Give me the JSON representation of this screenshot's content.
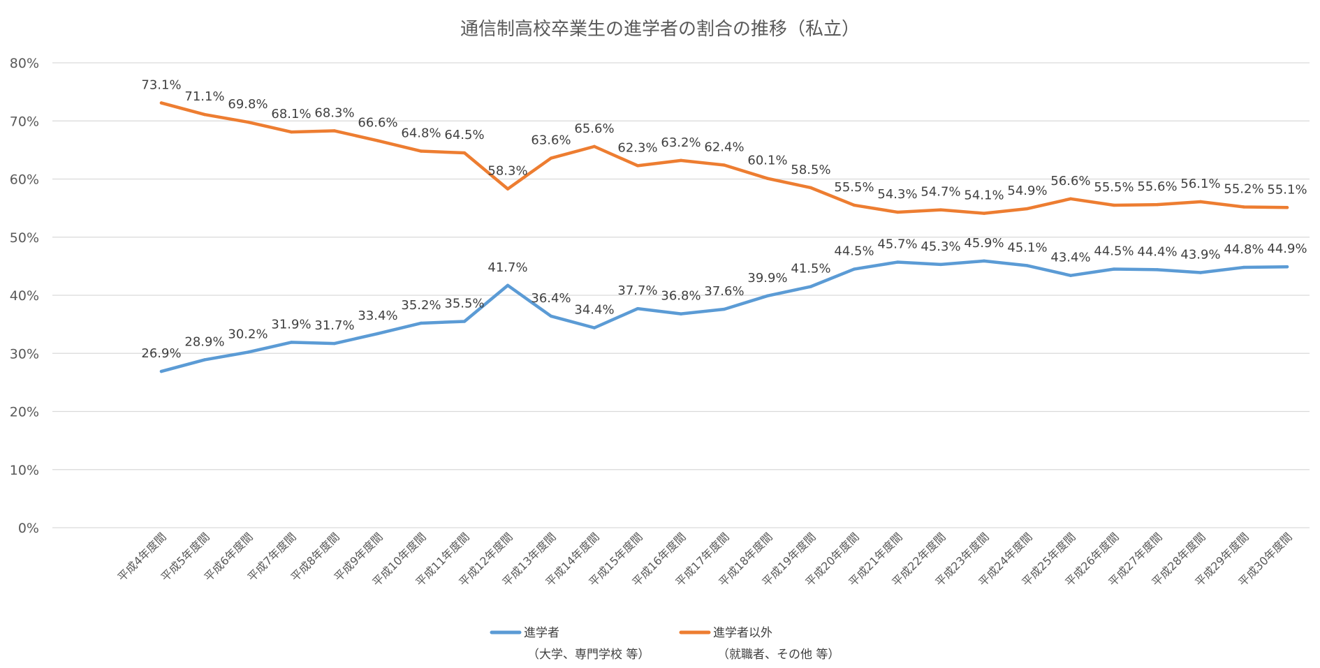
{
  "chart_data": {
    "type": "line",
    "title": "通信制高校卒業生の進学者の割合の推移（私立）",
    "xlabel": "",
    "ylabel": "",
    "ylim": [
      0,
      0.8
    ],
    "yticks": [
      "0%",
      "10%",
      "20%",
      "30%",
      "40%",
      "50%",
      "60%",
      "70%",
      "80%"
    ],
    "grid": true,
    "legend_position": "bottom",
    "categories": [
      "平成4年度間",
      "平成5年度間",
      "平成6年度間",
      "平成7年度間",
      "平成8年度間",
      "平成9年度間",
      "平成10年度間",
      "平成11年度間",
      "平成12年度間",
      "平成13年度間",
      "平成14年度間",
      "平成15年度間",
      "平成16年度間",
      "平成17年度間",
      "平成18年度間",
      "平成19年度間",
      "平成20年度間",
      "平成21年度間",
      "平成22年度間",
      "平成23年度間",
      "平成24年度間",
      "平成25年度間",
      "平成26年度間",
      "平成27年度間",
      "平成28年度間",
      "平成29年度間",
      "平成30年度間"
    ],
    "series": [
      {
        "name": "進学者",
        "name_sub": "（大学、専門学校 等）",
        "color": "#5b9bd5",
        "values": [
          0.269,
          0.289,
          0.302,
          0.319,
          0.317,
          0.334,
          0.352,
          0.355,
          0.417,
          0.364,
          0.344,
          0.377,
          0.368,
          0.376,
          0.399,
          0.415,
          0.445,
          0.457,
          0.453,
          0.459,
          0.451,
          0.434,
          0.445,
          0.444,
          0.439,
          0.448,
          0.449
        ],
        "labels": [
          "26.9%",
          "28.9%",
          "30.2%",
          "31.9%",
          "31.7%",
          "33.4%",
          "35.2%",
          "35.5%",
          "41.7%",
          "36.4%",
          "34.4%",
          "37.7%",
          "36.8%",
          "37.6%",
          "39.9%",
          "41.5%",
          "44.5%",
          "45.7%",
          "45.3%",
          "45.9%",
          "45.1%",
          "43.4%",
          "44.5%",
          "44.4%",
          "43.9%",
          "44.8%",
          "44.9%"
        ]
      },
      {
        "name": "進学者以外",
        "name_sub": "（就職者、その他 等）",
        "color": "#ed7d31",
        "values": [
          0.731,
          0.711,
          0.698,
          0.681,
          0.683,
          0.666,
          0.648,
          0.645,
          0.583,
          0.636,
          0.656,
          0.623,
          0.632,
          0.624,
          0.601,
          0.585,
          0.555,
          0.543,
          0.547,
          0.541,
          0.549,
          0.566,
          0.555,
          0.556,
          0.561,
          0.552,
          0.551
        ],
        "labels": [
          "73.1%",
          "71.1%",
          "69.8%",
          "68.1%",
          "68.3%",
          "66.6%",
          "64.8%",
          "64.5%",
          "58.3%",
          "63.6%",
          "65.6%",
          "62.3%",
          "63.2%",
          "62.4%",
          "60.1%",
          "58.5%",
          "55.5%",
          "54.3%",
          "54.7%",
          "54.1%",
          "54.9%",
          "56.6%",
          "55.5%",
          "55.6%",
          "56.1%",
          "55.2%",
          "55.1%"
        ]
      }
    ]
  }
}
